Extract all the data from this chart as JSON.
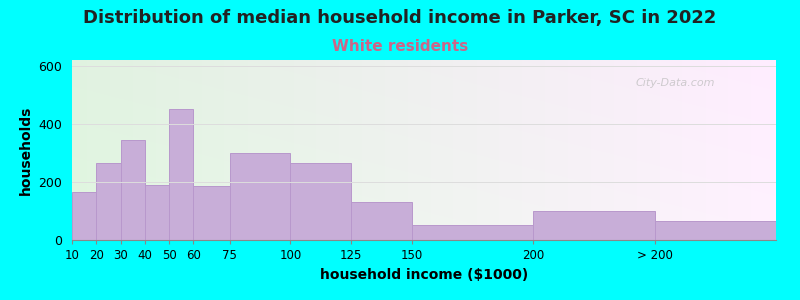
{
  "title": "Distribution of median household income in Parker, SC in 2022",
  "subtitle": "White residents",
  "xlabel": "household income ($1000)",
  "ylabel": "households",
  "title_fontsize": 13,
  "subtitle_fontsize": 11,
  "subtitle_color": "#cc6688",
  "bar_color": "#c8aed8",
  "bar_edge_color": "#b898cc",
  "background_outer": "#00ffff",
  "bin_edges": [
    10,
    20,
    30,
    40,
    50,
    60,
    75,
    100,
    125,
    150,
    200,
    250,
    300
  ],
  "values": [
    165,
    265,
    345,
    190,
    450,
    185,
    300,
    265,
    130,
    50,
    100,
    65
  ],
  "xtick_positions": [
    10,
    20,
    30,
    40,
    50,
    60,
    75,
    100,
    125,
    150,
    200,
    250
  ],
  "xtick_labels": [
    "10",
    "20",
    "30",
    "40",
    "50",
    "60",
    "75",
    "100",
    "125",
    "150",
    "200",
    "> 200"
  ],
  "ylim": [
    0,
    620
  ],
  "yticks": [
    0,
    200,
    400,
    600
  ],
  "watermark": "City-Data.com"
}
